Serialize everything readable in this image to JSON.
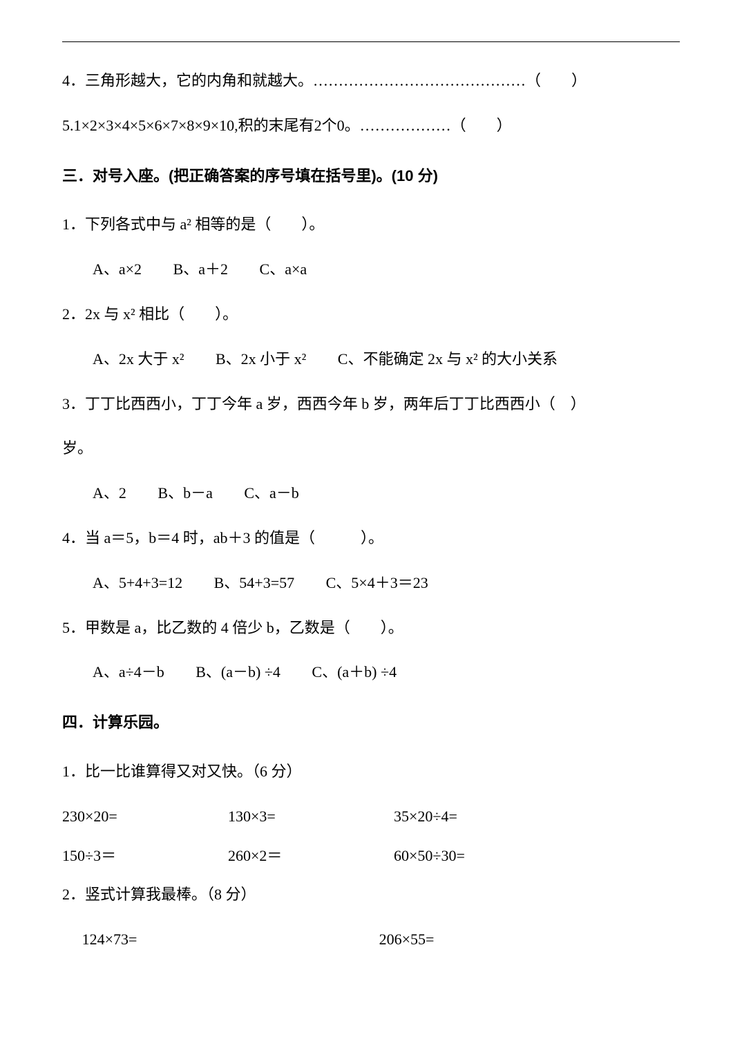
{
  "colors": {
    "text": "#000000",
    "background": "#ffffff",
    "rule": "#000000"
  },
  "typography": {
    "body_font": "SimSun",
    "heading_font": "SimHei",
    "body_fontsize": 22,
    "line_height": 2.4
  },
  "judgment": {
    "q4": "4．三角形越大，它的内角和就越大。……………………………………（　　）",
    "q5": "5.1×2×3×4×5×6×7×8×9×10,积的末尾有2个0。………………（　　）"
  },
  "section3": {
    "title": "三．对号入座。(把正确答案的序号填在括号里)。(10 分)",
    "q1": {
      "stem": "1．下列各式中与 a² 相等的是（　　）。",
      "a": "A、a×2",
      "b": "B、a＋2",
      "c": "C、a×a"
    },
    "q2": {
      "stem": "2．2x 与 x² 相比（　　）。",
      "a": "A、2x 大于 x²",
      "b": "B、2x 小于 x²",
      "c": "C、不能确定 2x 与 x² 的大小关系"
    },
    "q3": {
      "stem_line1": "3．丁丁比西西小，丁丁今年 a 岁，西西今年 b 岁，两年后丁丁比西西小（　）",
      "stem_line2": "岁。",
      "a": "A、2",
      "b": "B、b－a",
      "c": "C、a－b"
    },
    "q4": {
      "stem": "4．当 a＝5，b＝4 时，ab＋3 的值是（　　　）。",
      "a": "A、5+4+3=12",
      "b": "B、54+3=57",
      "c": "C、5×4＋3＝23"
    },
    "q5": {
      "stem": "5．甲数是 a，比乙数的 4 倍少 b，乙数是（　　）。",
      "a": "A、a÷4－b",
      "b": "B、(a－b) ÷4",
      "c": "C、(a＋b) ÷4"
    }
  },
  "section4": {
    "title": "四．计算乐园。",
    "sub1": {
      "heading": "1．比一比谁算得又对又快。（6 分）",
      "row1": {
        "c1": "230×20=",
        "c2": "130×3=",
        "c3": "35×20÷4="
      },
      "row2": {
        "c1": "150÷3＝",
        "c2": "260×2＝",
        "c3": "60×50÷30="
      }
    },
    "sub2": {
      "heading": "2．竖式计算我最棒。（8 分）",
      "row1": {
        "c1": "124×73=",
        "c2": "206×55="
      }
    }
  }
}
